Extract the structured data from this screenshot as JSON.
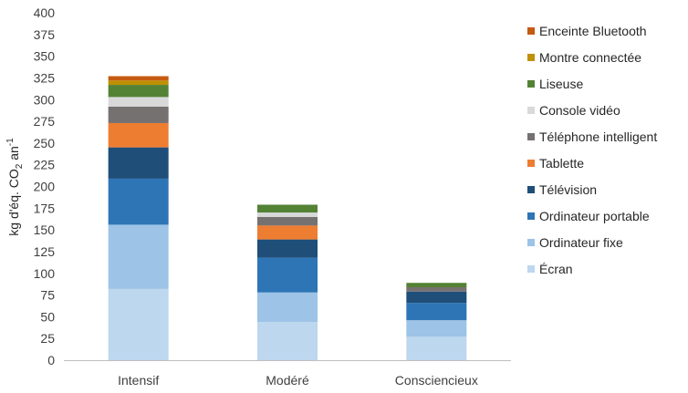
{
  "chart_data": {
    "type": "bar",
    "stacked": true,
    "categories": [
      "Intensif",
      "Modéré",
      "Consciencieux"
    ],
    "ylabel_main": "kg d'éq. CO",
    "ylabel_sub": "2",
    "ylabel_rest": " an",
    "ylabel_sup": "-1",
    "ylim": [
      0,
      400
    ],
    "yticks": [
      0,
      25,
      50,
      75,
      100,
      125,
      150,
      175,
      200,
      225,
      250,
      275,
      300,
      325,
      350,
      375,
      400
    ],
    "legend_placement": "right",
    "grid": false,
    "series": [
      {
        "name": "Écran",
        "color": "#BDD7EE",
        "values": [
          82,
          44,
          27
        ]
      },
      {
        "name": "Ordinateur fixe",
        "color": "#9DC3E6",
        "values": [
          74,
          34,
          19
        ]
      },
      {
        "name": "Ordinateur portable",
        "color": "#2E75B6",
        "values": [
          53,
          40,
          20
        ]
      },
      {
        "name": "Télévision",
        "color": "#1F4E79",
        "values": [
          36,
          21,
          13
        ]
      },
      {
        "name": "Tablette",
        "color": "#ED7D31",
        "values": [
          28,
          16,
          0
        ]
      },
      {
        "name": "Téléphone intelligent",
        "color": "#767171",
        "values": [
          19,
          10,
          5
        ]
      },
      {
        "name": "Console vidéo",
        "color": "#D9D9D9",
        "values": [
          11,
          5,
          0
        ]
      },
      {
        "name": "Liseuse",
        "color": "#548235",
        "values": [
          14,
          9,
          5
        ]
      },
      {
        "name": "Montre connectée",
        "color": "#BF9000",
        "values": [
          5,
          0,
          0
        ]
      },
      {
        "name": "Enceinte Bluetooth",
        "color": "#C55A11",
        "values": [
          5,
          0,
          0
        ]
      }
    ]
  }
}
